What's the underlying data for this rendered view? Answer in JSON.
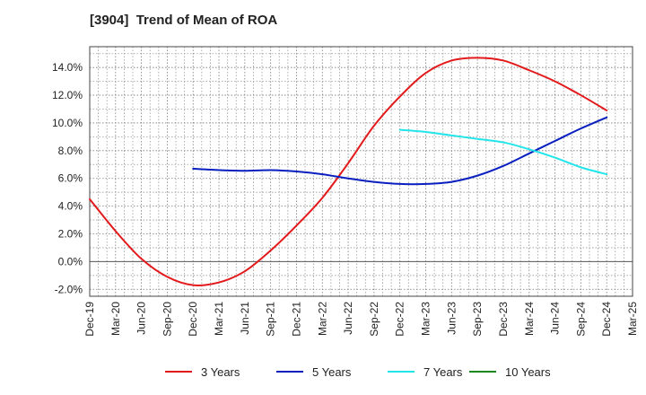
{
  "chart_data": {
    "type": "line",
    "title": "[3904]  Trend of Mean of ROA",
    "xlabel": "",
    "ylabel": "",
    "x_ticks": [
      "Dec-19",
      "Mar-20",
      "Jun-20",
      "Sep-20",
      "Dec-20",
      "Mar-21",
      "Jun-21",
      "Sep-21",
      "Dec-21",
      "Mar-22",
      "Jun-22",
      "Sep-22",
      "Dec-22",
      "Mar-23",
      "Jun-23",
      "Sep-23",
      "Dec-23",
      "Mar-24",
      "Jun-24",
      "Sep-24",
      "Dec-24",
      "Mar-25"
    ],
    "y_ticks": [
      -2.0,
      0.0,
      2.0,
      4.0,
      6.0,
      8.0,
      10.0,
      12.0,
      14.0
    ],
    "y_tick_labels": [
      "-2.0%",
      "0.0%",
      "2.0%",
      "4.0%",
      "6.0%",
      "8.0%",
      "10.0%",
      "12.0%",
      "14.0%"
    ],
    "ylim": [
      -2.5,
      15.5
    ],
    "grid": true,
    "legend_position": "bottom",
    "series": [
      {
        "name": "3 Years",
        "color": "#e31a1c",
        "x": [
          "Dec-19",
          "Mar-20",
          "Jun-20",
          "Sep-20",
          "Dec-20",
          "Mar-21",
          "Jun-21",
          "Sep-21",
          "Dec-21",
          "Mar-22",
          "Jun-22",
          "Sep-22",
          "Dec-22",
          "Mar-23",
          "Jun-23",
          "Sep-23",
          "Dec-23",
          "Mar-24",
          "Jun-24",
          "Sep-24",
          "Dec-24"
        ],
        "values": [
          4.5,
          2.2,
          0.2,
          -1.1,
          -1.7,
          -1.5,
          -0.7,
          0.8,
          2.6,
          4.6,
          7.1,
          9.8,
          11.9,
          13.6,
          14.5,
          14.7,
          14.5,
          13.8,
          13.0,
          12.0,
          10.9
        ]
      },
      {
        "name": "5 Years",
        "color": "#0a1fbf",
        "x": [
          "Dec-20",
          "Mar-21",
          "Jun-21",
          "Sep-21",
          "Dec-21",
          "Mar-22",
          "Jun-22",
          "Sep-22",
          "Dec-22",
          "Mar-23",
          "Jun-23",
          "Sep-23",
          "Dec-23",
          "Mar-24",
          "Jun-24",
          "Sep-24",
          "Dec-24"
        ],
        "values": [
          6.7,
          6.6,
          6.55,
          6.6,
          6.5,
          6.3,
          6.0,
          5.75,
          5.6,
          5.6,
          5.75,
          6.2,
          6.9,
          7.8,
          8.7,
          9.6,
          10.4
        ]
      },
      {
        "name": "7 Years",
        "color": "#22e5ea",
        "x": [
          "Dec-22",
          "Mar-23",
          "Jun-23",
          "Sep-23",
          "Dec-23",
          "Mar-24",
          "Jun-24",
          "Sep-24",
          "Dec-24"
        ],
        "values": [
          9.5,
          9.35,
          9.1,
          8.85,
          8.6,
          8.1,
          7.5,
          6.8,
          6.3
        ]
      },
      {
        "name": "10 Years",
        "color": "#1a8a1a",
        "x": [],
        "values": []
      }
    ]
  }
}
